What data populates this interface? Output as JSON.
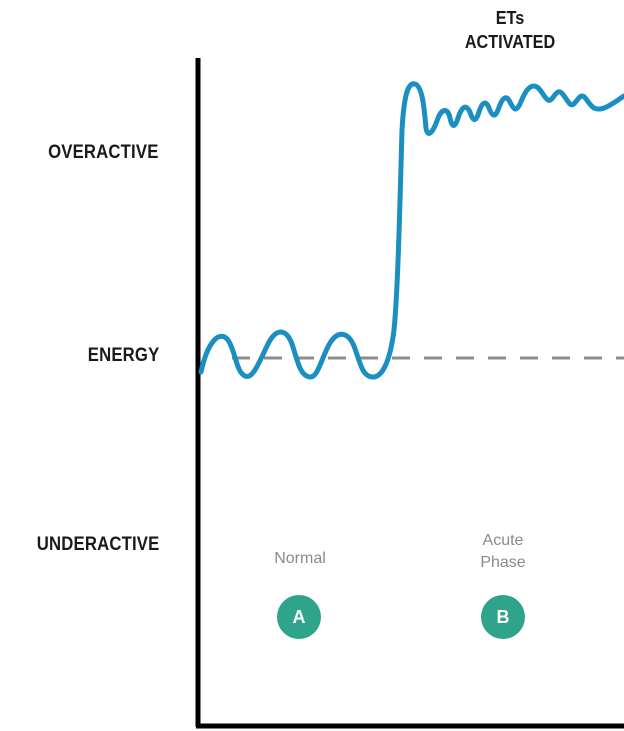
{
  "y_axis": {
    "levels": [
      "OVERACTIVE",
      "ENERGY",
      "UNDERACTIVE"
    ]
  },
  "annotation": {
    "line1": "ETs",
    "line2": "ACTIVATED"
  },
  "phases": [
    {
      "label_lines": [
        "Normal"
      ],
      "badge": "A"
    },
    {
      "label_lines": [
        "Acute",
        "Phase"
      ],
      "badge": "B"
    }
  ],
  "colors": {
    "signal": "#1a8fc0",
    "baseline": "#8c8c8c",
    "axis": "#000000",
    "badge": "#2fa48a"
  }
}
